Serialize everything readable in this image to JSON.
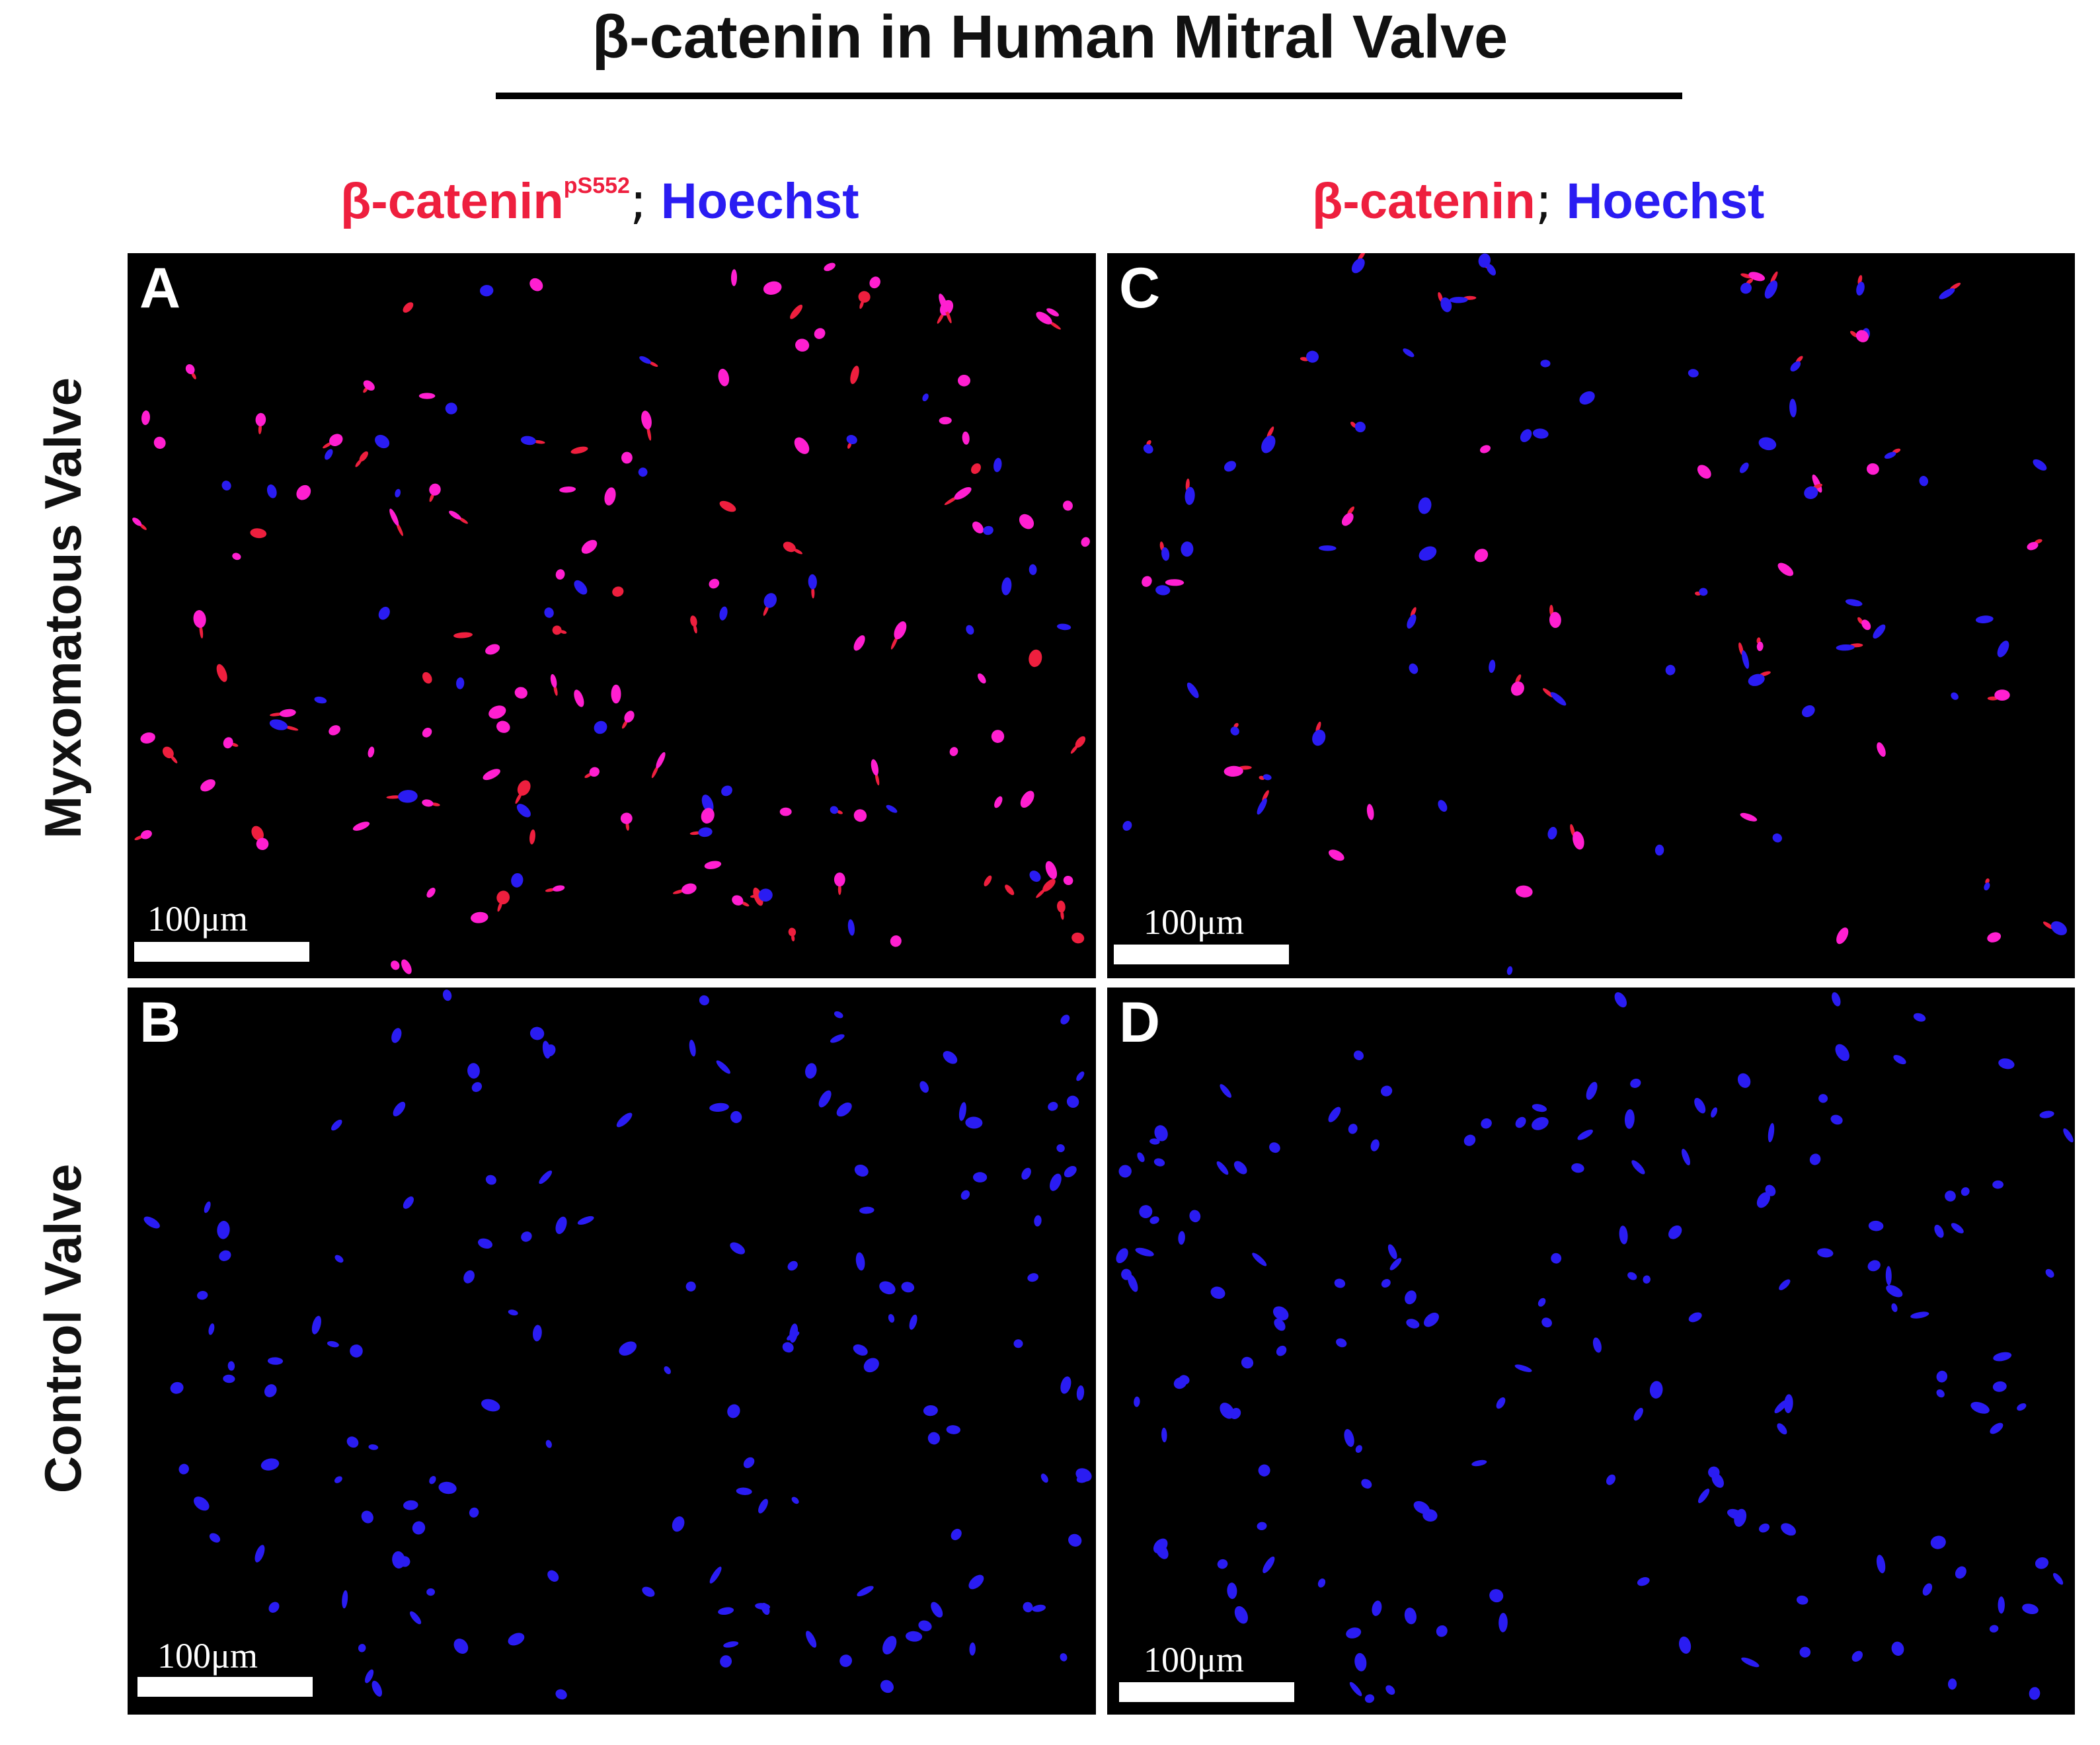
{
  "figure": {
    "title": "β-catenin in Human Mitral Valve",
    "columns": [
      {
        "marker": "β-catenin",
        "superscript": "pS552",
        "separator": ";",
        "counterstain": "Hoechst"
      },
      {
        "marker": "β-catenin",
        "separator": ";",
        "counterstain": "Hoechst"
      }
    ],
    "rows": [
      {
        "label": "Myxomatous Valve"
      },
      {
        "label": "Control Valve"
      }
    ],
    "panels": [
      {
        "letter": "A",
        "scale_label": "100μm"
      },
      {
        "letter": "C",
        "scale_label": "100μm"
      },
      {
        "letter": "B",
        "scale_label": "100μm"
      },
      {
        "letter": "D",
        "scale_label": "100μm"
      }
    ],
    "colors": {
      "background": "#000000",
      "red_channel": "#ee1f3e",
      "blue_channel": "#2a1cf2",
      "merged_magenta": "#ff1fd0"
    }
  }
}
